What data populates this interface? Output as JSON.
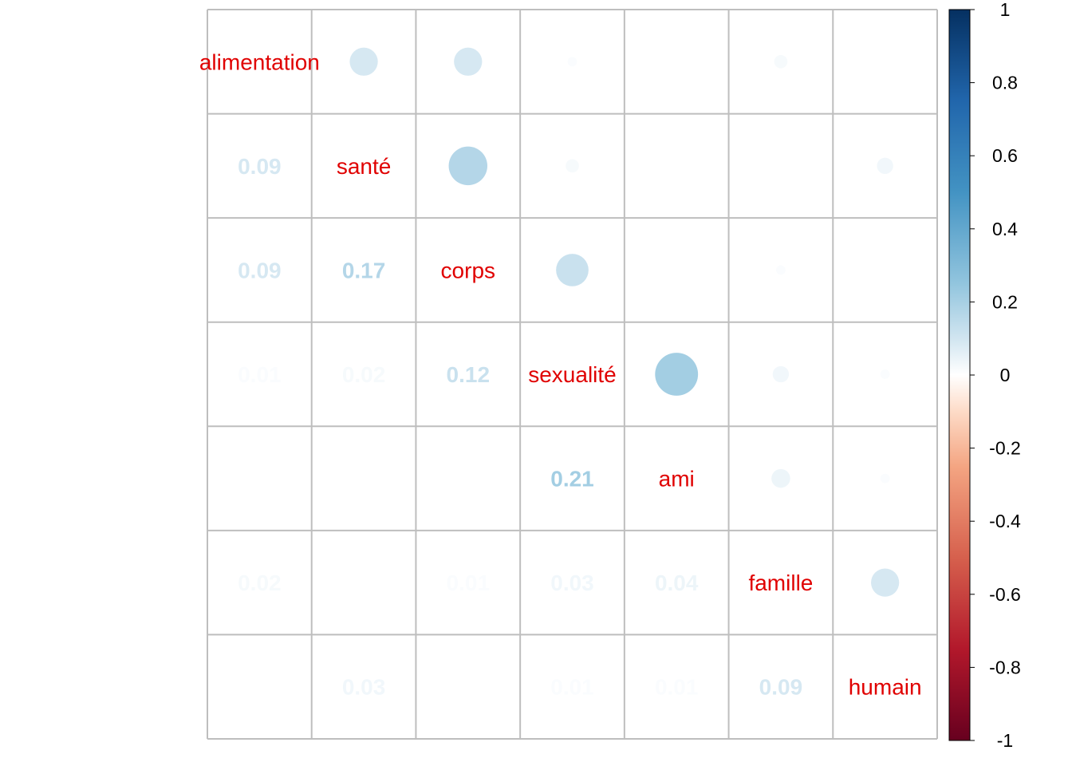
{
  "chart_data": {
    "type": "heatmap",
    "variables": [
      "alimentation",
      "santé",
      "corps",
      "sexualité",
      "ami",
      "famille",
      "humain"
    ],
    "label_color": "#e00000",
    "correlations": [
      [
        1.0,
        0.09,
        0.09,
        0.01,
        0.0,
        0.02,
        0.0
      ],
      [
        0.09,
        1.0,
        0.17,
        0.02,
        0.0,
        0.0,
        0.03
      ],
      [
        0.09,
        0.17,
        1.0,
        0.12,
        0.0,
        0.01,
        0.0
      ],
      [
        0.01,
        0.02,
        0.12,
        1.0,
        0.21,
        0.03,
        0.01
      ],
      [
        0.0,
        0.0,
        0.0,
        0.21,
        1.0,
        0.04,
        0.01
      ],
      [
        0.02,
        0.0,
        0.01,
        0.03,
        0.04,
        1.0,
        0.09
      ],
      [
        0.0,
        0.03,
        0.0,
        0.01,
        0.01,
        0.09,
        1.0
      ]
    ],
    "upper_method": "circle",
    "lower_method": "number",
    "colorbar": {
      "range": [
        -1,
        1
      ],
      "tick_labels": [
        "1",
        "0.8",
        "0.6",
        "0.4",
        "0.2",
        "0",
        "-0.2",
        "-0.4",
        "-0.6",
        "-0.8",
        "-1"
      ],
      "stops": [
        {
          "value": -1.0,
          "color": "#67001f"
        },
        {
          "value": -0.75,
          "color": "#b2182b"
        },
        {
          "value": -0.5,
          "color": "#d6604d"
        },
        {
          "value": -0.25,
          "color": "#f4a582"
        },
        {
          "value": -0.1,
          "color": "#fddbc7"
        },
        {
          "value": 0.0,
          "color": "#ffffff"
        },
        {
          "value": 0.1,
          "color": "#d1e5f0"
        },
        {
          "value": 0.25,
          "color": "#92c5de"
        },
        {
          "value": 0.5,
          "color": "#4393c3"
        },
        {
          "value": 0.75,
          "color": "#2166ac"
        },
        {
          "value": 1.0,
          "color": "#053061"
        }
      ]
    },
    "grid_color": "#bebebe"
  }
}
